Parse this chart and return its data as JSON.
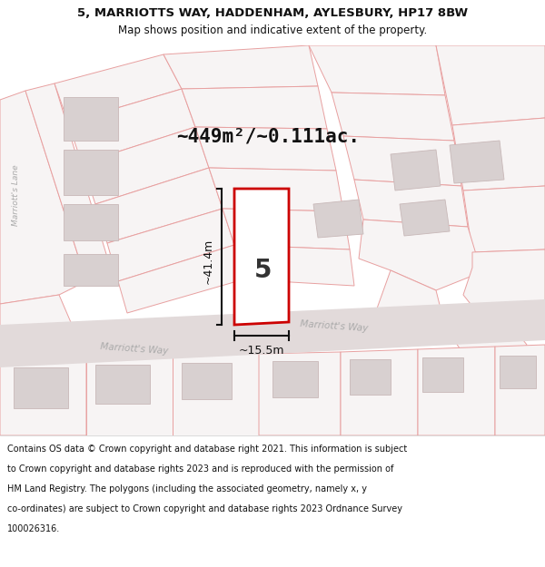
{
  "title_line1": "5, MARRIOTTS WAY, HADDENHAM, AYLESBURY, HP17 8BW",
  "title_line2": "Map shows position and indicative extent of the property.",
  "area_label": "~449m²/~0.111ac.",
  "plot_number": "5",
  "width_label": "~15.5m",
  "height_label": "~41.4m",
  "lane_label": "Marriott's Lane",
  "road_label_left": "Marriott's Way",
  "road_label_right": "Marriott's Way",
  "footer_lines": [
    "Contains OS data © Crown copyright and database right 2021. This information is subject",
    "to Crown copyright and database rights 2023 and is reproduced with the permission of",
    "HM Land Registry. The polygons (including the associated geometry, namely x, y",
    "co-ordinates) are subject to Crown copyright and database rights 2023 Ordnance Survey",
    "100026316."
  ],
  "map_bg": "#f7f4f4",
  "plot_fill": "#ffffff",
  "plot_outline": "#cc0000",
  "parcel_fill": "#e8e2e2",
  "parcel_stroke": "#e8a0a0",
  "building_fill": "#d8d0d0",
  "building_stroke": "#c8b8b8",
  "road_fill": "#e2dada",
  "road_stroke": "#e8a0a0",
  "footer_bg": "#ffffff",
  "title_bg": "#ffffff",
  "meas_color": "#111111",
  "text_color": "#111111",
  "road_text_color": "#aaaaaa",
  "lane_text_color": "#aaaaaa"
}
